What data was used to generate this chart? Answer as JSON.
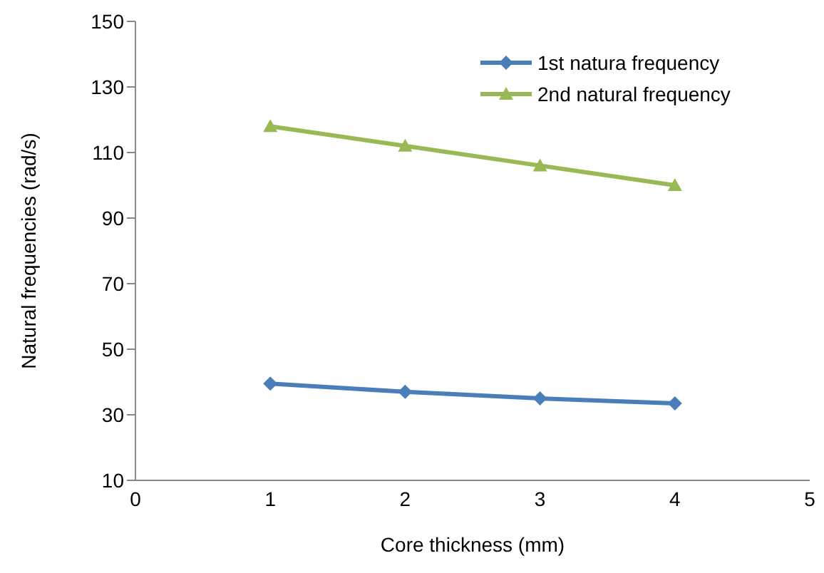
{
  "chart_data": {
    "type": "line",
    "xlabel": "Core thickness (mm)",
    "ylabel": "Natural frequencies (rad/s)",
    "x": [
      1,
      2,
      3,
      4
    ],
    "series": [
      {
        "name": "1st natura frequency",
        "color": "#4a7ebb",
        "values": [
          39.5,
          37,
          35,
          33.5
        ],
        "marker": "diamond"
      },
      {
        "name": "2nd natural frequency",
        "color": "#98b954",
        "values": [
          118,
          112,
          106,
          100
        ],
        "marker": "triangle"
      }
    ],
    "xlim": [
      0,
      5
    ],
    "xticks": [
      0,
      1,
      2,
      3,
      4,
      5
    ],
    "ylim": [
      10,
      150
    ],
    "yticks": [
      10,
      30,
      50,
      70,
      90,
      110,
      130,
      150
    ],
    "grid": false,
    "legend": "top right",
    "line_style": "solid"
  }
}
